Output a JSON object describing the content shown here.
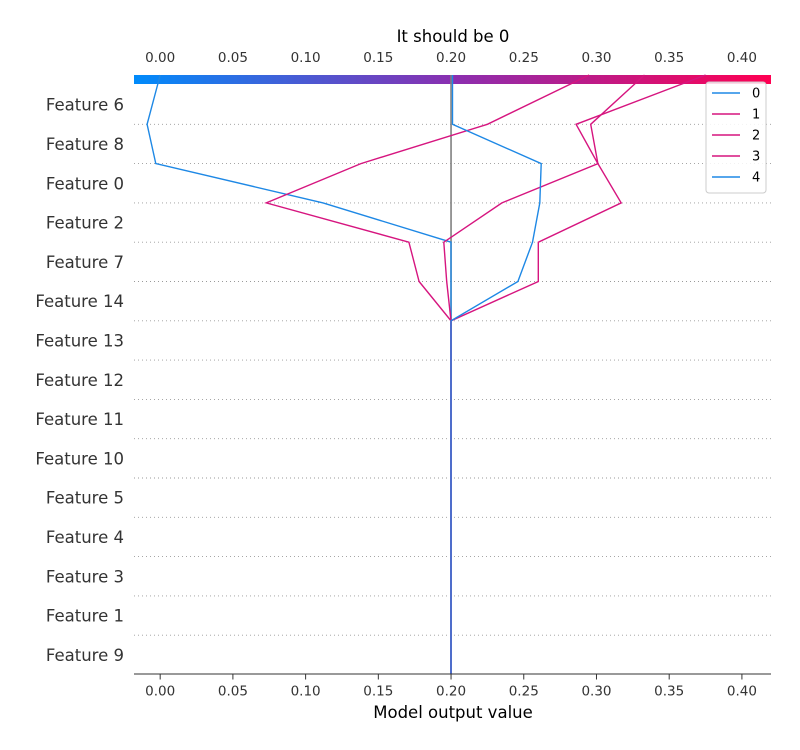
{
  "chart_data": {
    "type": "line",
    "plot_kind": "decision-plot",
    "title": "It should be 0",
    "xlabel": "Model output value",
    "xlim": [
      -0.018,
      0.42
    ],
    "xticks": [
      0.0,
      0.05,
      0.1,
      0.15,
      0.2,
      0.25,
      0.3,
      0.35,
      0.4
    ],
    "tick_labels": [
      "0.00",
      "0.05",
      "0.10",
      "0.15",
      "0.20",
      "0.25",
      "0.30",
      "0.35",
      "0.40"
    ],
    "base_value": 0.2,
    "features": [
      "Feature 6",
      "Feature 8",
      "Feature 0",
      "Feature 2",
      "Feature 7",
      "Feature 14",
      "Feature 13",
      "Feature 12",
      "Feature 11",
      "Feature 10",
      "Feature 5",
      "Feature 4",
      "Feature 3",
      "Feature 1",
      "Feature 9"
    ],
    "colorbar": {
      "from": "#008bfb",
      "mid": "#8a2fb0",
      "to": "#ff0052"
    },
    "grid": "dotted horizontal",
    "legend_position": "top-right",
    "series": [
      {
        "name": "0",
        "color": "#1e88e5",
        "values": [
          0.0,
          -0.009,
          -0.003,
          0.112,
          0.2,
          0.2,
          0.2,
          0.2,
          0.2,
          0.2,
          0.2,
          0.2,
          0.2,
          0.2,
          0.2,
          0.2
        ]
      },
      {
        "name": "1",
        "color": "#d6157f",
        "values": [
          0.295,
          0.225,
          0.138,
          0.073,
          0.171,
          0.178,
          0.2,
          0.2,
          0.2,
          0.2,
          0.2,
          0.2,
          0.2,
          0.2,
          0.2,
          0.2
        ]
      },
      {
        "name": "2",
        "color": "#d6157f",
        "values": [
          0.375,
          0.286,
          0.301,
          0.235,
          0.195,
          0.197,
          0.2,
          0.2,
          0.2,
          0.2,
          0.2,
          0.2,
          0.2,
          0.2,
          0.2,
          0.2
        ]
      },
      {
        "name": "3",
        "color": "#d6157f",
        "values": [
          0.333,
          0.296,
          0.301,
          0.317,
          0.26,
          0.26,
          0.2,
          0.2,
          0.2,
          0.2,
          0.2,
          0.2,
          0.2,
          0.2,
          0.2,
          0.2
        ]
      },
      {
        "name": "4",
        "color": "#1e88e5",
        "values": [
          0.201,
          0.201,
          0.262,
          0.261,
          0.256,
          0.246,
          0.2,
          0.2,
          0.2,
          0.2,
          0.2,
          0.2,
          0.2,
          0.2,
          0.2,
          0.2
        ]
      }
    ]
  }
}
